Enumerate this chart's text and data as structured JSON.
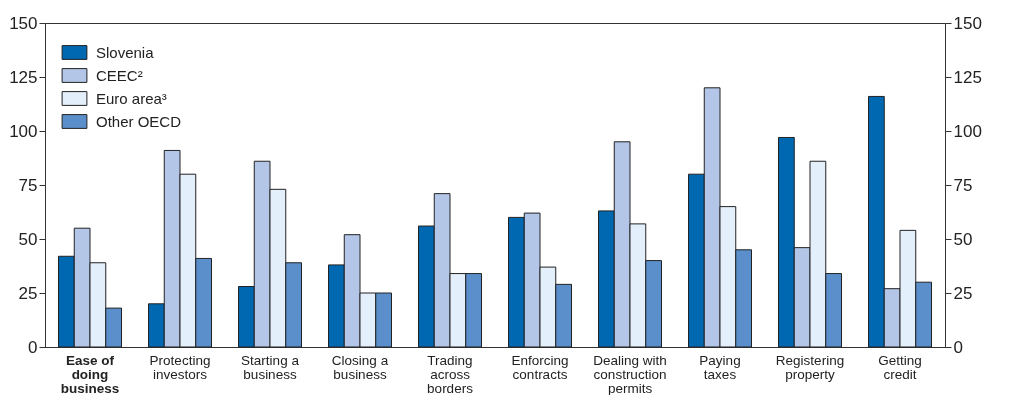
{
  "chart_data": {
    "type": "bar",
    "categories": [
      "Ease of\ndoing\nbusiness",
      "Protecting\ninvestors",
      "Starting a\nbusiness",
      "Closing a\nbusiness",
      "Trading\nacross\nborders",
      "Enforcing\ncontracts",
      "Dealing with\nconstruction\npermits",
      "Paying\ntaxes",
      "Registering\nproperty",
      "Getting\ncredit"
    ],
    "series": [
      {
        "name": "Slovenia",
        "color": "#0067b1",
        "values": [
          42,
          20,
          28,
          38,
          56,
          60,
          63,
          80,
          97,
          116
        ]
      },
      {
        "name": "CEEC²",
        "color": "#b3c6e7",
        "values": [
          55,
          91,
          86,
          52,
          71,
          62,
          95,
          120,
          46,
          27
        ]
      },
      {
        "name": "Euro area³",
        "color": "#e3effa",
        "values": [
          39,
          80,
          73,
          25,
          34,
          37,
          57,
          65,
          86,
          54
        ]
      },
      {
        "name": "Other OECD",
        "color": "#5b8fcb",
        "values": [
          18,
          41,
          39,
          25,
          34,
          29,
          40,
          45,
          34,
          30
        ]
      }
    ],
    "ylim": [
      0,
      150
    ],
    "yticks": [
      0,
      25,
      50,
      75,
      100,
      125,
      150
    ],
    "y2lim": [
      0,
      150
    ],
    "y2ticks": [
      0,
      25,
      50,
      75,
      100,
      125,
      150
    ],
    "grid": false,
    "legend": "top left"
  }
}
